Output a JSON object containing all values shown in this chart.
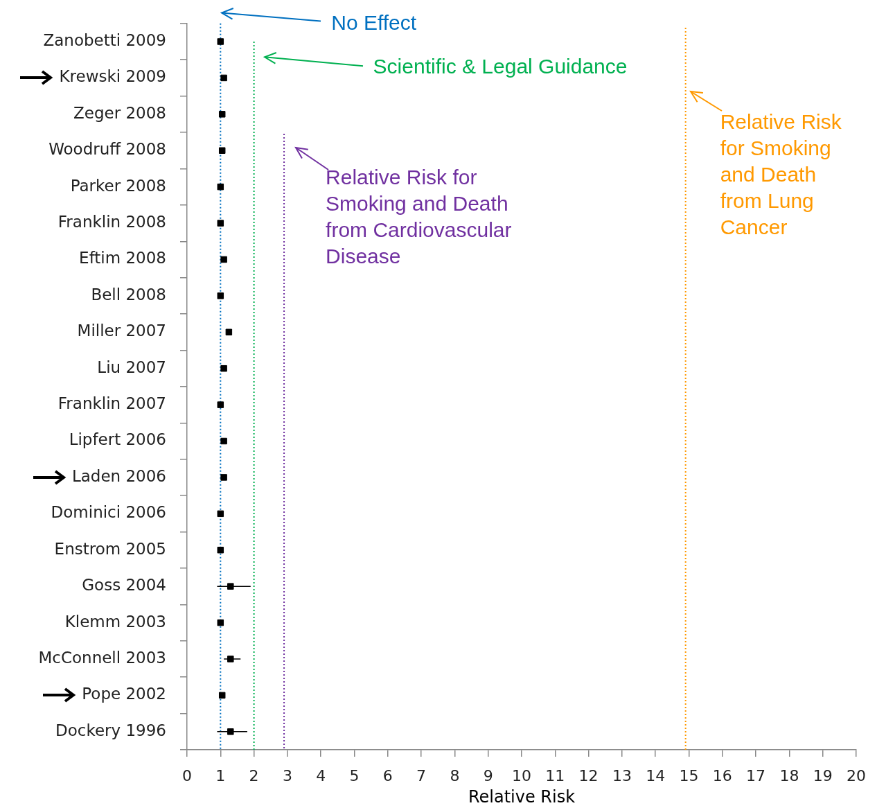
{
  "chart_data": {
    "type": "scatter",
    "xlabel": "Relative Risk",
    "orientation": "horizontal",
    "marker": "square",
    "grid": false,
    "legend": false,
    "categories": [
      "Zanobetti 2009",
      "Krewski 2009",
      "Zeger 2008",
      "Woodruff 2008",
      "Parker 2008",
      "Franklin 2008",
      "Eftim 2008",
      "Bell 2008",
      "Miller 2007",
      "Liu 2007",
      "Franklin 2007",
      "Lipfert 2006",
      "Laden 2006",
      "Dominici 2006",
      "Enstrom 2005",
      "Goss 2004",
      "Klemm 2003",
      "McConnell 2003",
      "Pope 2002",
      "Dockery 1996"
    ],
    "color": "#000000",
    "values": [
      1.0,
      1.1,
      1.05,
      1.05,
      1.0,
      1.0,
      1.1,
      1.0,
      1.25,
      1.1,
      1.0,
      1.1,
      1.1,
      1.0,
      1.0,
      1.3,
      1.0,
      1.3,
      1.05,
      1.3
    ],
    "errors": [
      null,
      null,
      null,
      null,
      null,
      null,
      null,
      null,
      null,
      null,
      null,
      null,
      null,
      null,
      null,
      [
        0.9,
        1.9
      ],
      null,
      [
        1.1,
        1.6
      ],
      null,
      [
        0.9,
        1.8
      ]
    ],
    "xlim": [
      0,
      20
    ],
    "xticks": [
      0,
      1,
      2,
      3,
      4,
      5,
      6,
      7,
      8,
      9,
      10,
      11,
      12,
      13,
      14,
      15,
      16,
      17,
      18,
      19,
      20
    ],
    "ref_lines": [
      {
        "axis": "x",
        "value": 1,
        "label": "No Effect",
        "color": "#0070c0",
        "line_style": "dotted"
      },
      {
        "axis": "x",
        "value": 2,
        "label": "Scientific & Legal Guidance",
        "color": "#00b050",
        "line_style": "dotted"
      },
      {
        "axis": "x",
        "value": 2.9,
        "label": "Relative Risk for Smoking and Death from Cardiovascular Disease",
        "color": "#7030a0",
        "line_style": "dotted"
      },
      {
        "axis": "x",
        "value": 14.9,
        "label": "Relative Risk for Smoking and Death from Lung Cancer",
        "color": "#ff9900",
        "line_style": "dotted"
      }
    ]
  }
}
